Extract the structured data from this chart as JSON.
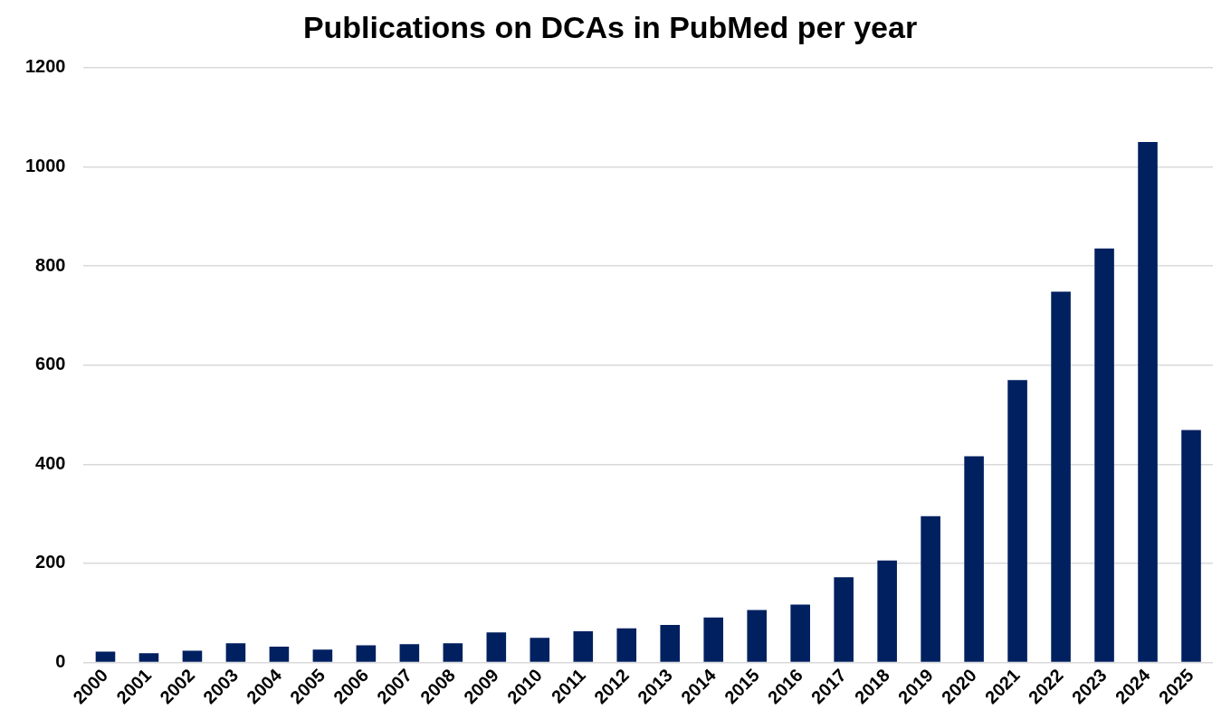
{
  "chart_data": {
    "type": "bar",
    "title": "Publications on DCAs in PubMed per year",
    "categories": [
      "2000",
      "2001",
      "2002",
      "2003",
      "2004",
      "2005",
      "2006",
      "2007",
      "2008",
      "2009",
      "2010",
      "2011",
      "2012",
      "2013",
      "2014",
      "2015",
      "2016",
      "2017",
      "2018",
      "2019",
      "2020",
      "2021",
      "2022",
      "2023",
      "2024",
      "2025"
    ],
    "values": [
      22,
      19,
      24,
      39,
      32,
      26,
      35,
      37,
      39,
      61,
      50,
      63,
      69,
      76,
      91,
      106,
      117,
      172,
      206,
      295,
      416,
      570,
      748,
      835,
      1050,
      469
    ],
    "color": "#002060",
    "ylim": [
      0,
      1200
    ],
    "yticks": [
      0,
      200,
      400,
      600,
      800,
      1000,
      1200
    ],
    "grid": "y",
    "legend": false
  }
}
